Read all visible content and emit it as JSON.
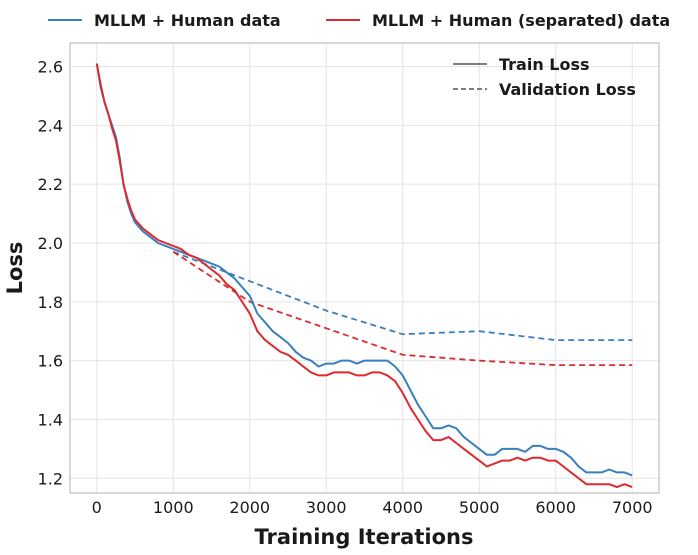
{
  "chart_data": {
    "type": "line",
    "xlabel": "Training Iterations",
    "ylabel": "Loss",
    "xlim": [
      -350,
      7350
    ],
    "ylim": [
      1.15,
      2.68
    ],
    "xticks": [
      0,
      1000,
      2000,
      3000,
      4000,
      5000,
      6000,
      7000
    ],
    "yticks": [
      1.2,
      1.4,
      1.6,
      1.8,
      2.0,
      2.2,
      2.4,
      2.6
    ],
    "grid": true,
    "top_legend": {
      "placement": "top-outside",
      "entries": [
        {
          "label": "MLLM + Human data",
          "color": "#3a7fbd"
        },
        {
          "label": "MLLM + Human (separated) data",
          "color": "#dd2a2f"
        }
      ]
    },
    "style_legend": {
      "placement": "top-right",
      "entries": [
        {
          "label": "Train Loss",
          "dash": "solid"
        },
        {
          "label": "Validation Loss",
          "dash": "dashed"
        }
      ]
    },
    "series": [
      {
        "name": "MLLM + Human data",
        "kind": "train",
        "color": "#3a7fbd",
        "x": [
          0,
          50,
          100,
          150,
          200,
          250,
          300,
          350,
          400,
          450,
          500,
          600,
          700,
          800,
          900,
          1000,
          1100,
          1200,
          1300,
          1400,
          1500,
          1600,
          1700,
          1800,
          1900,
          2000,
          2100,
          2200,
          2300,
          2400,
          2500,
          2600,
          2700,
          2800,
          2900,
          3000,
          3100,
          3200,
          3300,
          3400,
          3500,
          3600,
          3700,
          3800,
          3900,
          4000,
          4100,
          4200,
          4300,
          4400,
          4500,
          4600,
          4700,
          4800,
          4900,
          5000,
          5100,
          5200,
          5300,
          5400,
          5500,
          5600,
          5700,
          5800,
          5900,
          6000,
          6100,
          6200,
          6300,
          6400,
          6500,
          6600,
          6700,
          6800,
          6900,
          7000
        ],
        "y": [
          2.61,
          2.53,
          2.48,
          2.44,
          2.4,
          2.36,
          2.29,
          2.2,
          2.14,
          2.1,
          2.07,
          2.04,
          2.02,
          2.0,
          1.99,
          1.98,
          1.97,
          1.96,
          1.95,
          1.94,
          1.93,
          1.92,
          1.9,
          1.88,
          1.85,
          1.82,
          1.76,
          1.73,
          1.7,
          1.68,
          1.66,
          1.63,
          1.61,
          1.6,
          1.58,
          1.59,
          1.59,
          1.6,
          1.6,
          1.59,
          1.6,
          1.6,
          1.6,
          1.6,
          1.58,
          1.55,
          1.5,
          1.45,
          1.41,
          1.37,
          1.37,
          1.38,
          1.37,
          1.34,
          1.32,
          1.3,
          1.28,
          1.28,
          1.3,
          1.3,
          1.3,
          1.29,
          1.31,
          1.31,
          1.3,
          1.3,
          1.29,
          1.27,
          1.24,
          1.22,
          1.22,
          1.22,
          1.23,
          1.22,
          1.22,
          1.21
        ]
      },
      {
        "name": "MLLM + Human (separated) data",
        "kind": "train",
        "color": "#dd2a2f",
        "x": [
          0,
          50,
          100,
          150,
          200,
          250,
          300,
          350,
          400,
          450,
          500,
          600,
          700,
          800,
          900,
          1000,
          1100,
          1200,
          1300,
          1400,
          1500,
          1600,
          1700,
          1800,
          1900,
          2000,
          2100,
          2200,
          2300,
          2400,
          2500,
          2600,
          2700,
          2800,
          2900,
          3000,
          3100,
          3200,
          3300,
          3400,
          3500,
          3600,
          3700,
          3800,
          3900,
          4000,
          4100,
          4200,
          4300,
          4400,
          4500,
          4600,
          4700,
          4800,
          4900,
          5000,
          5100,
          5200,
          5300,
          5400,
          5500,
          5600,
          5700,
          5800,
          5900,
          6000,
          6100,
          6200,
          6300,
          6400,
          6500,
          6600,
          6700,
          6800,
          6900,
          7000
        ],
        "y": [
          2.61,
          2.54,
          2.48,
          2.44,
          2.39,
          2.35,
          2.28,
          2.2,
          2.15,
          2.11,
          2.08,
          2.05,
          2.03,
          2.01,
          2.0,
          1.99,
          1.98,
          1.96,
          1.95,
          1.93,
          1.91,
          1.89,
          1.86,
          1.84,
          1.8,
          1.76,
          1.7,
          1.67,
          1.65,
          1.63,
          1.62,
          1.6,
          1.58,
          1.56,
          1.55,
          1.55,
          1.56,
          1.56,
          1.56,
          1.55,
          1.55,
          1.56,
          1.56,
          1.55,
          1.53,
          1.49,
          1.44,
          1.4,
          1.36,
          1.33,
          1.33,
          1.34,
          1.32,
          1.3,
          1.28,
          1.26,
          1.24,
          1.25,
          1.26,
          1.26,
          1.27,
          1.26,
          1.27,
          1.27,
          1.26,
          1.26,
          1.24,
          1.22,
          1.2,
          1.18,
          1.18,
          1.18,
          1.18,
          1.17,
          1.18,
          1.17
        ]
      },
      {
        "name": "MLLM + Human data",
        "kind": "validation",
        "color": "#3a7fbd",
        "x": [
          1000,
          2000,
          3000,
          4000,
          5000,
          6000,
          7000
        ],
        "y": [
          1.97,
          1.87,
          1.77,
          1.69,
          1.7,
          1.67,
          1.67
        ]
      },
      {
        "name": "MLLM + Human (separated) data",
        "kind": "validation",
        "color": "#dd2a2f",
        "x": [
          1000,
          2000,
          3000,
          4000,
          5000,
          6000,
          7000
        ],
        "y": [
          1.97,
          1.8,
          1.71,
          1.62,
          1.6,
          1.585,
          1.585
        ]
      }
    ]
  }
}
